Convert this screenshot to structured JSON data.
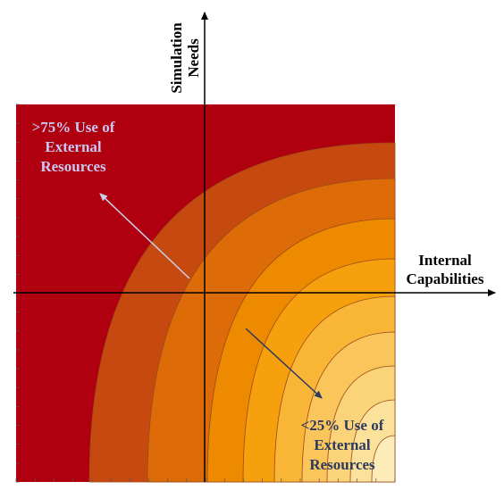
{
  "axes": {
    "x_label": [
      "Internal",
      "Capabilities"
    ],
    "y_label": [
      "Simulation",
      "Needs"
    ]
  },
  "annotations": [
    {
      "lines": [
        ">75% Use of",
        "External",
        "Resources"
      ]
    },
    {
      "lines": [
        "<25% Use of",
        "External",
        "Resources"
      ]
    }
  ]
}
